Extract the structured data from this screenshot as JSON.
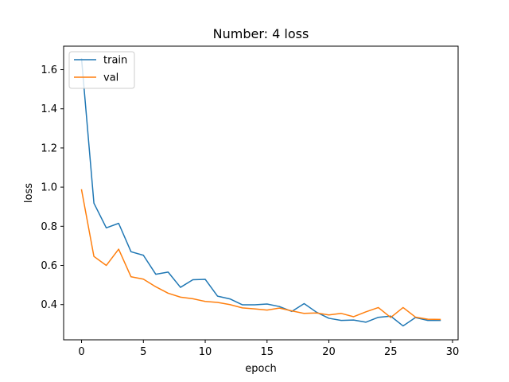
{
  "chart_data": {
    "type": "line",
    "title": "Number: 4 loss",
    "xlabel": "epoch",
    "ylabel": "loss",
    "xlim": [
      -1.45,
      30.45
    ],
    "ylim": [
      0.22,
      1.72
    ],
    "xticks": [
      0,
      5,
      10,
      15,
      20,
      25,
      30
    ],
    "yticks": [
      0.4,
      0.6,
      0.8,
      1.0,
      1.2,
      1.4,
      1.6
    ],
    "grid": false,
    "legend_position": "upper-left",
    "x": [
      0,
      1,
      2,
      3,
      4,
      5,
      6,
      7,
      8,
      9,
      10,
      11,
      12,
      13,
      14,
      15,
      16,
      17,
      18,
      19,
      20,
      21,
      22,
      23,
      24,
      25,
      26,
      27,
      28,
      29
    ],
    "series": [
      {
        "name": "train",
        "color": "#1f77b4",
        "values": [
          1.655,
          0.918,
          0.792,
          0.815,
          0.67,
          0.652,
          0.555,
          0.566,
          0.488,
          0.527,
          0.529,
          0.443,
          0.429,
          0.399,
          0.399,
          0.403,
          0.39,
          0.365,
          0.405,
          0.361,
          0.33,
          0.319,
          0.321,
          0.31,
          0.335,
          0.341,
          0.291,
          0.334,
          0.319,
          0.319
        ]
      },
      {
        "name": "val",
        "color": "#ff7f0e",
        "values": [
          0.986,
          0.646,
          0.6,
          0.683,
          0.542,
          0.53,
          0.491,
          0.458,
          0.438,
          0.43,
          0.416,
          0.411,
          0.4,
          0.383,
          0.378,
          0.372,
          0.382,
          0.368,
          0.355,
          0.357,
          0.347,
          0.355,
          0.338,
          0.363,
          0.385,
          0.334,
          0.385,
          0.336,
          0.325,
          0.324
        ]
      }
    ]
  }
}
